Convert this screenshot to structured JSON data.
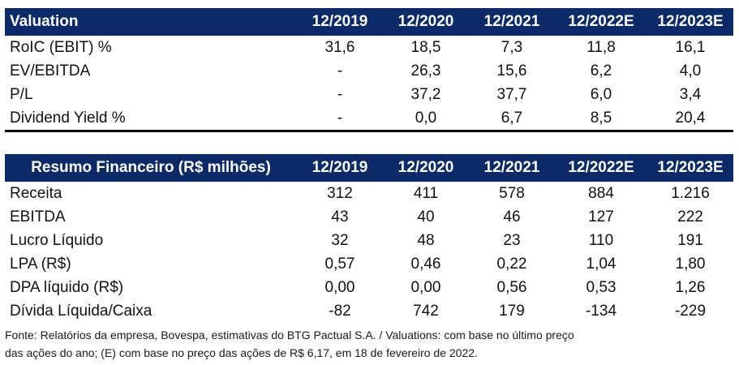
{
  "valuation": {
    "headers": [
      "Valuation",
      "12/2019",
      "12/2020",
      "12/2021",
      "12/2022E",
      "12/2023E"
    ],
    "rows": [
      [
        "RoIC (EBIT) %",
        "31,6",
        "18,5",
        "7,3",
        "11,8",
        "16,1"
      ],
      [
        "EV/EBITDA",
        "-",
        "26,3",
        "15,6",
        "6,2",
        "4,0"
      ],
      [
        "P/L",
        "-",
        "37,2",
        "37,7",
        "6,0",
        "3,4"
      ],
      [
        "Dividend Yield %",
        "-",
        "0,0",
        "6,7",
        "8,5",
        "20,4"
      ]
    ]
  },
  "resumo": {
    "headers": [
      "Resumo Financeiro (R$ milhões)",
      "12/2019",
      "12/2020",
      "12/2021",
      "12/2022E",
      "12/2023E"
    ],
    "rows": [
      [
        "Receita",
        "312",
        "411",
        "578",
        "884",
        "1.216"
      ],
      [
        "EBITDA",
        "43",
        "40",
        "46",
        "127",
        "222"
      ],
      [
        "Lucro Líquido",
        "32",
        "48",
        "23",
        "110",
        "191"
      ],
      [
        "LPA (R$)",
        "0,57",
        "0,46",
        "0,22",
        "1,04",
        "1,80"
      ],
      [
        "DPA líquido (R$)",
        "0,00",
        "0,00",
        "0,56",
        "0,53",
        "1,26"
      ],
      [
        "Dívida Líquida/Caixa",
        "-82",
        "742",
        "179",
        "-134",
        "-229"
      ]
    ]
  },
  "footnote": {
    "line1": "Fonte: Relatórios da empresa, Bovespa, estimativas do BTG Pactual S.A. / Valuations: com base no último preço",
    "line2": "das ações do ano; (E) com base no preço das ações de R$ 6,17, em 18 de fevereiro de 2022."
  }
}
